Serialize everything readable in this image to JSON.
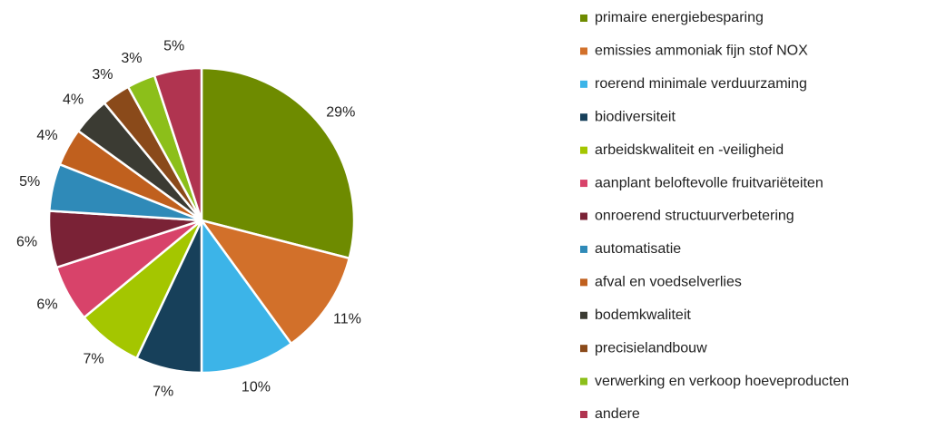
{
  "chart_data": {
    "type": "pie",
    "categories": [
      "primaire energiebesparing",
      "emissies ammoniak fijn stof NOX",
      "roerend minimale verduurzaming",
      "biodiversiteit",
      "arbeidskwaliteit en -veiligheid",
      "aanplant beloftevolle fruitvariëteiten",
      "onroerend structuurverbetering",
      "automatisatie",
      "afval en voedselverlies",
      "bodemkwaliteit",
      "precisielandbouw",
      "verwerking en verkoop hoeveproducten",
      "andere"
    ],
    "values": [
      29,
      11,
      10,
      7,
      7,
      6,
      6,
      5,
      4,
      4,
      3,
      3,
      5
    ],
    "value_labels": [
      "29%",
      "11%",
      "10%",
      "7%",
      "7%",
      "6%",
      "6%",
      "5%",
      "4%",
      "4%",
      "3%",
      "3%",
      "5%"
    ],
    "colors": [
      "#6e8b00",
      "#d2702a",
      "#3cb4e8",
      "#17405a",
      "#a4c600",
      "#d8436a",
      "#7a2236",
      "#2f8ab8",
      "#c0601e",
      "#3b3b33",
      "#8a4a1a",
      "#8cbf1a",
      "#b03450"
    ],
    "legend": "right"
  }
}
